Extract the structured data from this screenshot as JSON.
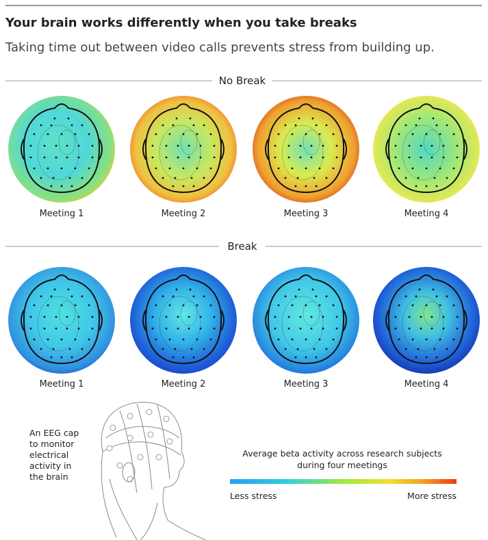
{
  "header": {
    "title": "Your brain works differently when you take breaks",
    "subtitle": "Taking time out between video calls prevents stress from building up."
  },
  "sections": [
    {
      "label": "No Break",
      "meetings": [
        "Meeting 1",
        "Meeting 2",
        "Meeting 3",
        "Meeting 4"
      ]
    },
    {
      "label": "Break",
      "meetings": [
        "Meeting 1",
        "Meeting 2",
        "Meeting 3",
        "Meeting 4"
      ]
    }
  ],
  "caption": [
    "An EEG cap",
    "to monitor",
    "electrical",
    "activity in",
    "the brain"
  ],
  "legend": {
    "title": [
      "Average beta activity across research subjects",
      "during four meetings"
    ],
    "low": "Less stress",
    "high": "More stress"
  }
}
